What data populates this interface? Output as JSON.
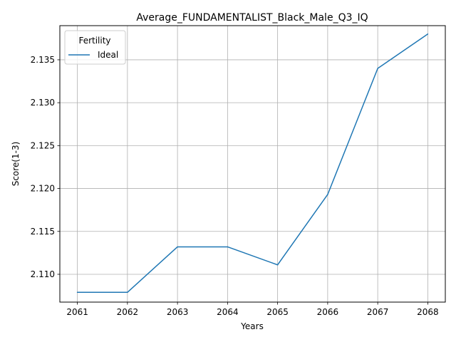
{
  "chart_data": {
    "type": "line",
    "title": "Average_FUNDAMENTALIST_Black_Male_Q3_IQ",
    "xlabel": "Years",
    "ylabel": "Score(1-3)",
    "x": [
      2061,
      2062,
      2063,
      2064,
      2065,
      2066,
      2067,
      2068
    ],
    "x_tick_labels": [
      "2061",
      "2062",
      "2063",
      "2064",
      "2065",
      "2066",
      "2067",
      "2068"
    ],
    "y_ticks": [
      2.11,
      2.115,
      2.12,
      2.125,
      2.13,
      2.135
    ],
    "y_tick_labels": [
      "2.110",
      "2.115",
      "2.120",
      "2.125",
      "2.130",
      "2.135"
    ],
    "xlim": [
      2060.65,
      2068.35
    ],
    "ylim": [
      2.10676,
      2.13898
    ],
    "grid": true,
    "legend": {
      "title": "Fertility",
      "position": "top-left"
    },
    "series": [
      {
        "name": "Ideal",
        "color": "#1f77b4",
        "values": [
          2.1079,
          2.1079,
          2.1132,
          2.1132,
          2.1111,
          2.1193,
          2.134,
          2.138
        ]
      }
    ]
  }
}
